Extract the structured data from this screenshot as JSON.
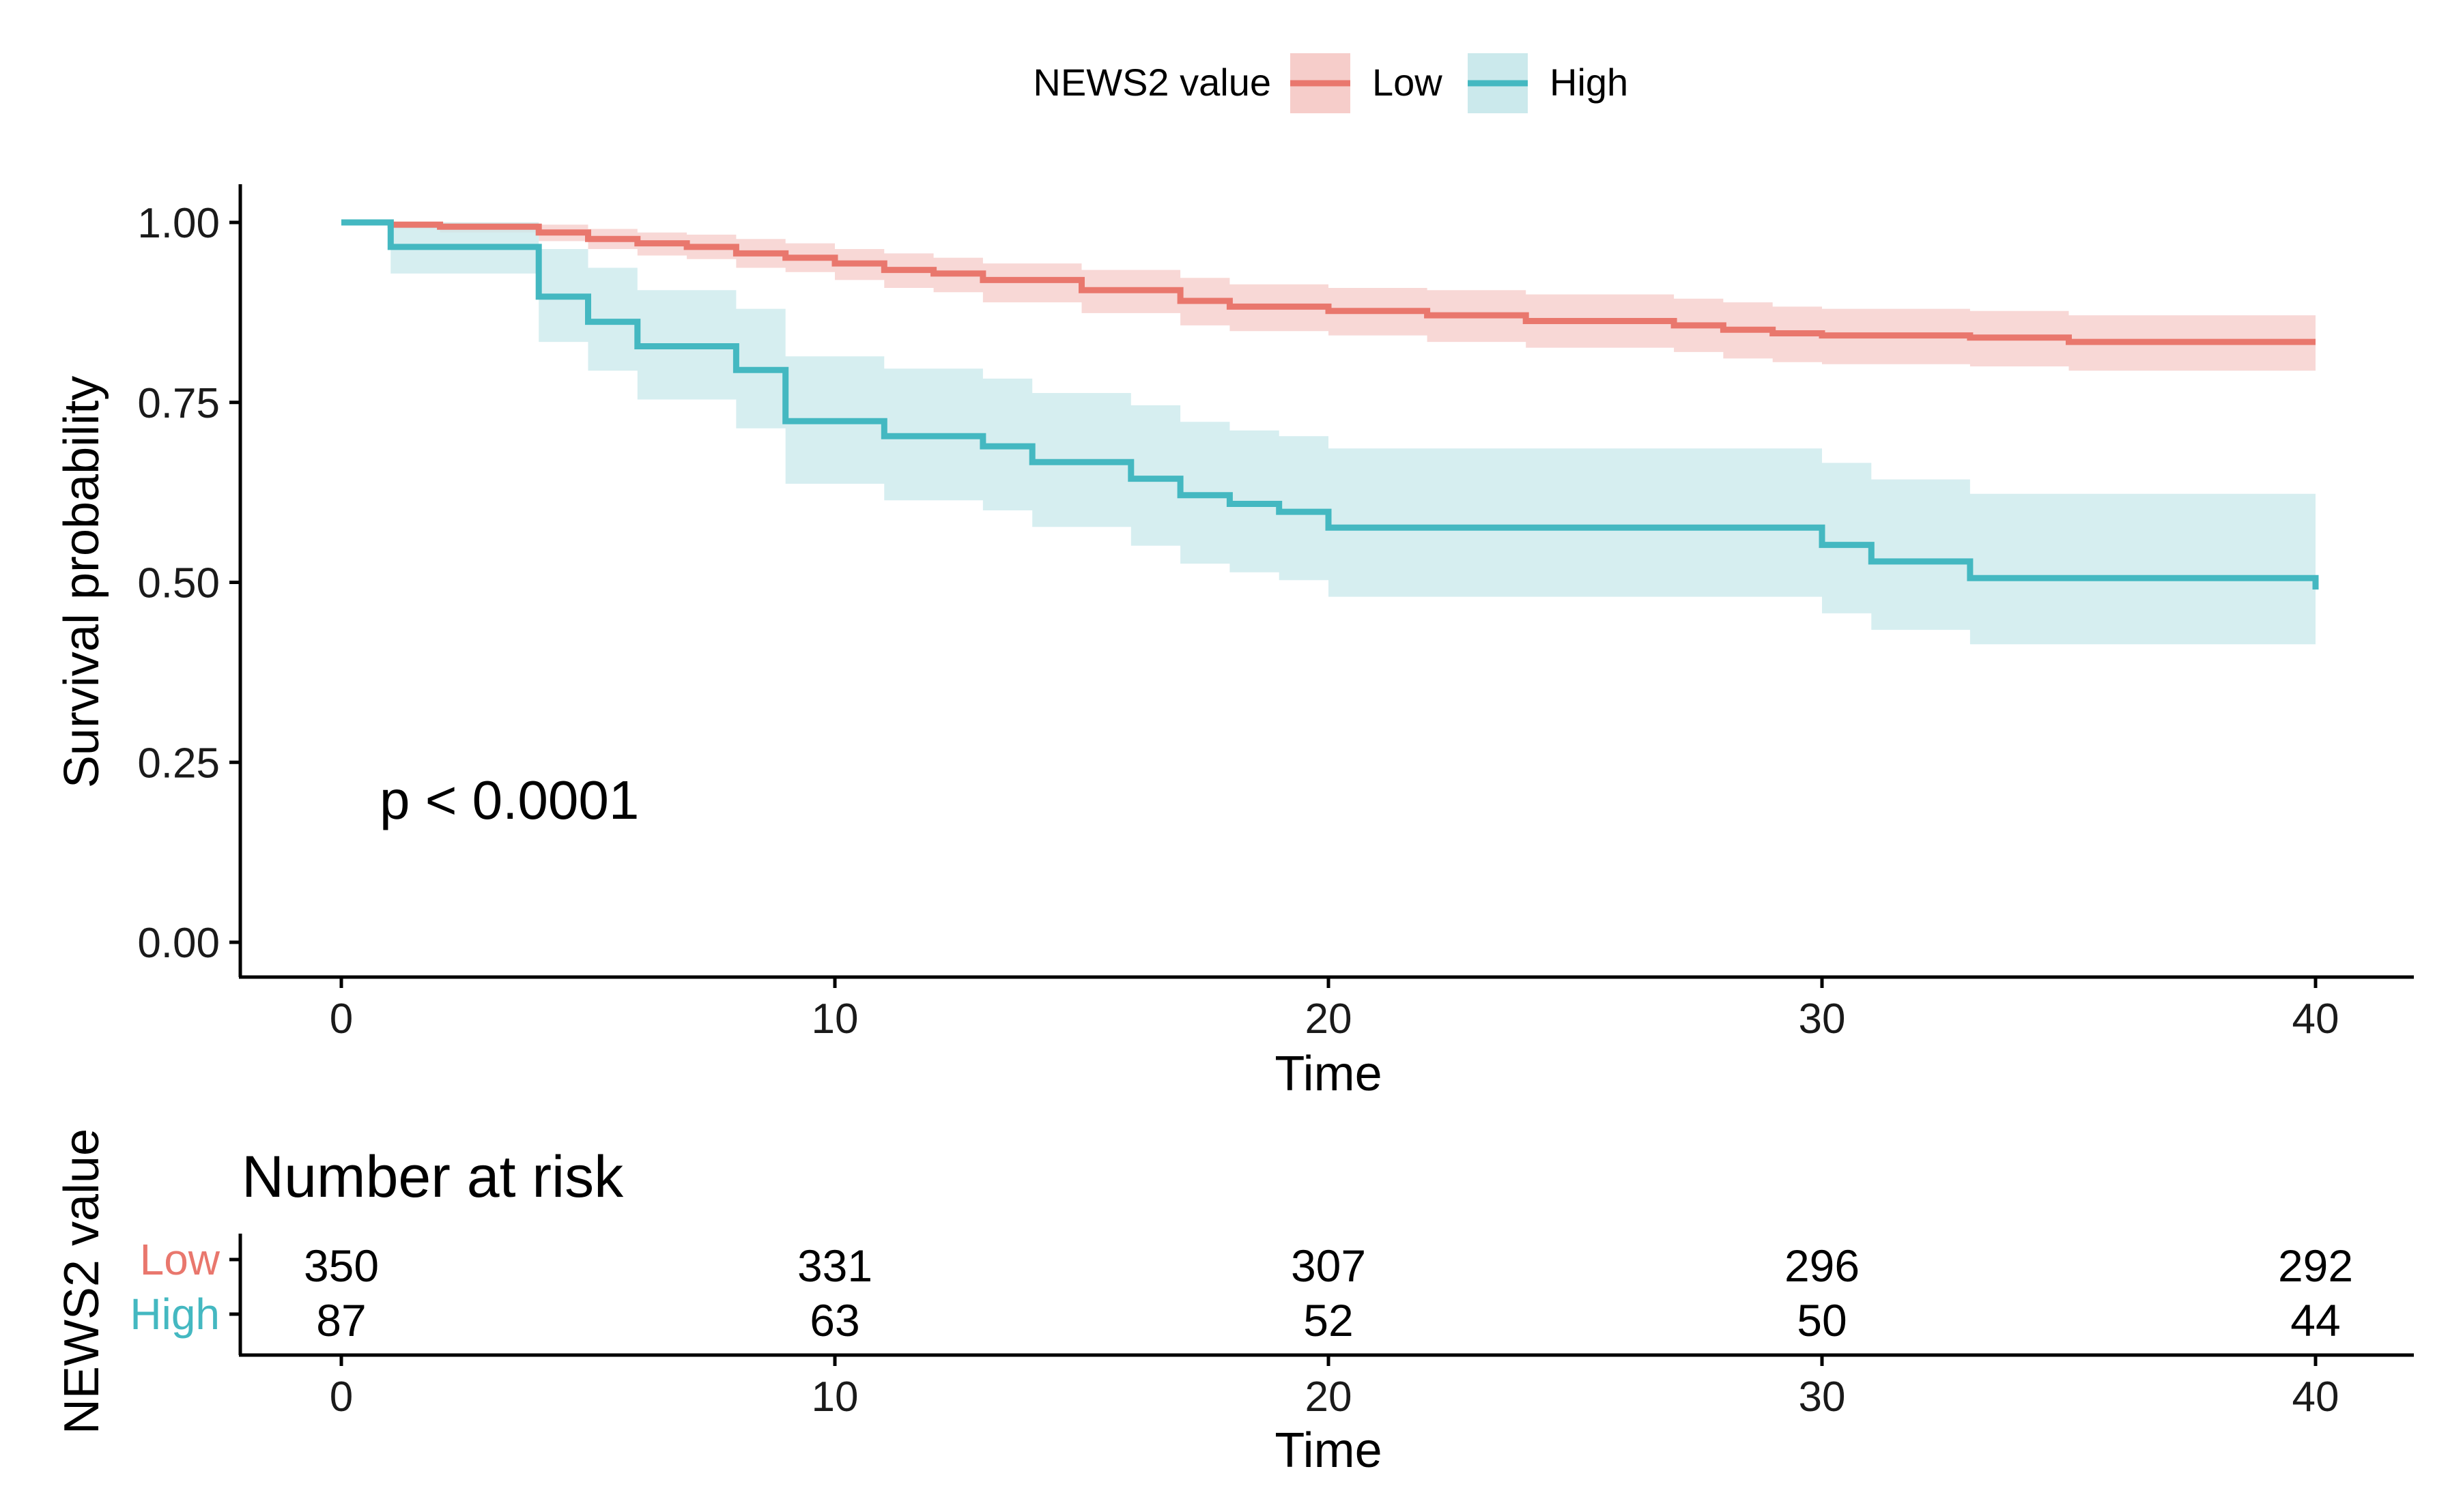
{
  "chart_data": {
    "type": "line",
    "subtype": "kaplan-meier",
    "legend": {
      "title": "NEWS2 value",
      "position": "top"
    },
    "xlabel": "Time",
    "ylabel": "Survival probability",
    "xlim": [
      0,
      40
    ],
    "ylim": [
      0,
      1
    ],
    "xticks": [
      0,
      10,
      20,
      30,
      40
    ],
    "yticks": [
      0,
      0.25,
      0.5,
      0.75,
      1.0
    ],
    "ytick_labels": [
      "0.00",
      "0.25",
      "0.50",
      "0.75",
      "1.00"
    ],
    "annotation": "p < 0.0001",
    "series": [
      {
        "name": "Low",
        "color": "#E9776D",
        "band_color": "#F6CDCA",
        "time": [
          0,
          1,
          2,
          4,
          5,
          6,
          7,
          8,
          9,
          10,
          11,
          12,
          13,
          15,
          17,
          18,
          20,
          22,
          24,
          27,
          28,
          29,
          30,
          33,
          35,
          40
        ],
        "surv": [
          1.0,
          0.997,
          0.994,
          0.986,
          0.977,
          0.971,
          0.966,
          0.957,
          0.951,
          0.943,
          0.934,
          0.929,
          0.92,
          0.906,
          0.891,
          0.883,
          0.877,
          0.871,
          0.863,
          0.857,
          0.851,
          0.846,
          0.843,
          0.84,
          0.834,
          0.834
        ],
        "lower": [
          1.0,
          0.991,
          0.986,
          0.974,
          0.963,
          0.954,
          0.949,
          0.937,
          0.931,
          0.92,
          0.909,
          0.903,
          0.889,
          0.874,
          0.857,
          0.849,
          0.843,
          0.834,
          0.826,
          0.82,
          0.811,
          0.806,
          0.803,
          0.8,
          0.794,
          0.794
        ],
        "upper": [
          1.0,
          1.0,
          1.0,
          0.997,
          0.991,
          0.986,
          0.983,
          0.977,
          0.971,
          0.963,
          0.957,
          0.951,
          0.943,
          0.934,
          0.923,
          0.914,
          0.909,
          0.906,
          0.9,
          0.894,
          0.889,
          0.883,
          0.88,
          0.877,
          0.871,
          0.871
        ]
      },
      {
        "name": "High",
        "color": "#44B8C1",
        "band_color": "#CBE9EC",
        "time": [
          0,
          1,
          4,
          5,
          6,
          8,
          9,
          11,
          13,
          14,
          16,
          17,
          18,
          19,
          20,
          30,
          31,
          33,
          40
        ],
        "surv": [
          1.0,
          0.966,
          0.897,
          0.862,
          0.828,
          0.795,
          0.724,
          0.703,
          0.689,
          0.667,
          0.644,
          0.621,
          0.609,
          0.598,
          0.576,
          0.552,
          0.529,
          0.506,
          0.49
        ],
        "lower": [
          1.0,
          0.929,
          0.834,
          0.794,
          0.754,
          0.714,
          0.637,
          0.614,
          0.6,
          0.577,
          0.551,
          0.526,
          0.514,
          0.503,
          0.48,
          0.457,
          0.434,
          0.414,
          0.414
        ],
        "upper": [
          1.0,
          1.0,
          0.963,
          0.937,
          0.906,
          0.88,
          0.814,
          0.797,
          0.783,
          0.763,
          0.746,
          0.723,
          0.711,
          0.703,
          0.686,
          0.666,
          0.643,
          0.623,
          0.623
        ]
      }
    ],
    "risk_table": {
      "title": "Number at risk",
      "ylabel": "NEWS2 value",
      "xlabel": "Time",
      "times": [
        0,
        10,
        20,
        30,
        40
      ],
      "groups": [
        {
          "name": "Low",
          "color": "#E9776D",
          "counts": [
            350,
            331,
            307,
            296,
            292
          ]
        },
        {
          "name": "High",
          "color": "#44B8C1",
          "counts": [
            87,
            63,
            52,
            50,
            44
          ]
        }
      ]
    }
  }
}
